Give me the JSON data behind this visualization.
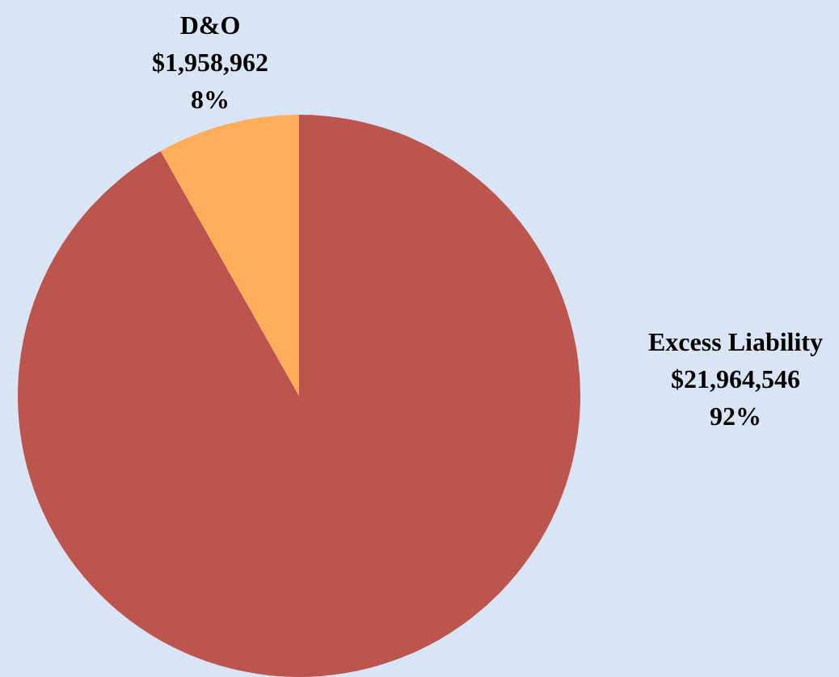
{
  "chart_data": {
    "type": "pie",
    "categories": [
      "Excess Liability",
      "D&O"
    ],
    "values": [
      21964546,
      1958962
    ],
    "colors": [
      "#bd554f",
      "#ffad5b"
    ],
    "value_labels": [
      "$21,964,546\n92%",
      "$1,958,962\n8%"
    ],
    "legend": false
  }
}
